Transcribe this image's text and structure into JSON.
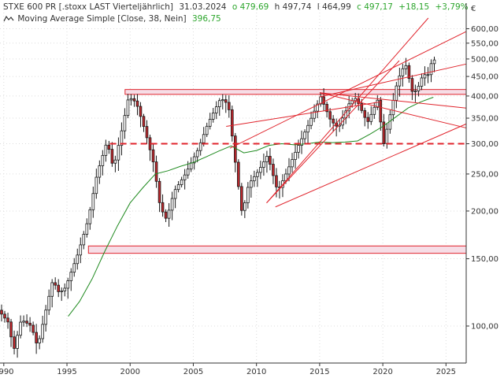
{
  "legend": {
    "instrument": "STXE 600 PR [.stoxx LAST Vierteljährlich]",
    "date": "31.03.2024",
    "open": "o 479,69",
    "high": "h 497,74",
    "low": "l 464,99",
    "close": "c 497,17",
    "change_abs": "+18,15",
    "change_pct": "+3,79%",
    "ma_label": "Moving Average Simple [Close, 38, Nein]",
    "ma_value": "396,75",
    "ma_icon": "moving-average-icon"
  },
  "currency_label": "€",
  "colors": {
    "up": "#ffffff",
    "down": "#c0282d",
    "outline": "#1a1a1a",
    "ma": "#1f8a1f",
    "lines": "#e0242c",
    "band_fill": "#f6dde6",
    "positive_text": "#2ba52b",
    "grid": "#dcdcdc"
  },
  "chart_data": {
    "type": "candlestick",
    "scale": "log",
    "ylim": [
      80,
      700
    ],
    "xlim": [
      1989.7,
      2026.6
    ],
    "y_ticks": [
      {
        "value": 100,
        "label": "100,00"
      },
      {
        "value": 150,
        "label": "150,00"
      },
      {
        "value": 200,
        "label": "200,00"
      },
      {
        "value": 250,
        "label": "250,00"
      },
      {
        "value": 300,
        "label": "300,00"
      },
      {
        "value": 350,
        "label": "350,00"
      },
      {
        "value": 400,
        "label": "400,00"
      },
      {
        "value": 450,
        "label": "450,00"
      },
      {
        "value": 500,
        "label": "500,00"
      },
      {
        "value": 550,
        "label": "550,00"
      },
      {
        "value": 600,
        "label": "600,00"
      }
    ],
    "x_ticks": [
      {
        "value": 1990,
        "label": "1990"
      },
      {
        "value": 1995,
        "label": "1995"
      },
      {
        "value": 2000,
        "label": "2000"
      },
      {
        "value": 2005,
        "label": "2005"
      },
      {
        "value": 2010,
        "label": "2010"
      },
      {
        "value": 2015,
        "label": "2015"
      },
      {
        "value": 2020,
        "label": "2020"
      },
      {
        "value": 2025,
        "label": "2025"
      }
    ],
    "anchors": [
      [
        1989.7,
        110
      ],
      [
        1990.5,
        102
      ],
      [
        1990.9,
        86
      ],
      [
        1991.5,
        104
      ],
      [
        1992.3,
        100
      ],
      [
        1992.8,
        88
      ],
      [
        1993.5,
        112
      ],
      [
        1994.0,
        132
      ],
      [
        1994.5,
        122
      ],
      [
        1995.0,
        126
      ],
      [
        1996.0,
        155
      ],
      [
        1996.8,
        190
      ],
      [
        1997.5,
        250
      ],
      [
        1998.3,
        305
      ],
      [
        1998.8,
        258
      ],
      [
        1999.5,
        330
      ],
      [
        2000.0,
        398
      ],
      [
        2000.6,
        385
      ],
      [
        2001.3,
        325
      ],
      [
        2002.0,
        265
      ],
      [
        2002.5,
        205
      ],
      [
        2003.0,
        190
      ],
      [
        2003.6,
        225
      ],
      [
        2004.5,
        250
      ],
      [
        2005.5,
        290
      ],
      [
        2006.3,
        340
      ],
      [
        2007.3,
        395
      ],
      [
        2007.9,
        380
      ],
      [
        2008.5,
        260
      ],
      [
        2009.0,
        195
      ],
      [
        2009.5,
        235
      ],
      [
        2010.3,
        255
      ],
      [
        2011.0,
        280
      ],
      [
        2011.8,
        225
      ],
      [
        2012.5,
        252
      ],
      [
        2013.3,
        290
      ],
      [
        2014.2,
        335
      ],
      [
        2015.2,
        398
      ],
      [
        2016.0,
        345
      ],
      [
        2016.6,
        330
      ],
      [
        2017.5,
        385
      ],
      [
        2018.0,
        395
      ],
      [
        2018.9,
        340
      ],
      [
        2019.7,
        390
      ],
      [
        2020.2,
        300
      ],
      [
        2020.8,
        370
      ],
      [
        2021.3,
        440
      ],
      [
        2021.9,
        488
      ],
      [
        2022.5,
        405
      ],
      [
        2022.9,
        420
      ],
      [
        2023.3,
        455
      ],
      [
        2023.8,
        455
      ],
      [
        2024.0,
        497
      ]
    ],
    "moving_average": [
      [
        1995.1,
        106
      ],
      [
        1996.0,
        116
      ],
      [
        1997.0,
        133
      ],
      [
        1998.0,
        157
      ],
      [
        1999.0,
        183
      ],
      [
        2000.0,
        210
      ],
      [
        2001.0,
        230
      ],
      [
        2002.0,
        250
      ],
      [
        2003.0,
        255
      ],
      [
        2004.0,
        262
      ],
      [
        2005.0,
        268
      ],
      [
        2006.0,
        277
      ],
      [
        2007.0,
        287
      ],
      [
        2008.0,
        296
      ],
      [
        2009.0,
        284
      ],
      [
        2010.0,
        288
      ],
      [
        2011.0,
        297
      ],
      [
        2012.0,
        300
      ],
      [
        2013.0,
        298
      ],
      [
        2014.0,
        300
      ],
      [
        2015.0,
        303
      ],
      [
        2016.0,
        302
      ],
      [
        2017.0,
        303
      ],
      [
        2018.0,
        305
      ],
      [
        2019.0,
        318
      ],
      [
        2020.0,
        333
      ],
      [
        2021.0,
        352
      ],
      [
        2022.0,
        372
      ],
      [
        2023.0,
        386
      ],
      [
        2024.0,
        397
      ]
    ],
    "hlines": [
      {
        "value": 300,
        "style": "dashed",
        "from": 1998.4
      }
    ],
    "bands": [
      {
        "from_value": 404,
        "to_value": 416,
        "start": 1999.6
      },
      {
        "from_value": 155,
        "to_value": 162,
        "start": 1996.7
      }
    ],
    "segments": [
      {
        "from": [
          2007.6,
          333
        ],
        "to": [
          2019.8,
          386
        ]
      },
      {
        "from": [
          2010.8,
          210
        ],
        "to": [
          2023.6,
          640
        ]
      },
      {
        "from": [
          2010.8,
          210
        ],
        "to": [
          2021.3,
          495
        ]
      },
      {
        "from": [
          2007.9,
          292
        ],
        "to": [
          2026.6,
          590
        ]
      },
      {
        "from": [
          2015.0,
          408
        ],
        "to": [
          2026.6,
          372
        ]
      },
      {
        "from": [
          2015.0,
          408
        ],
        "to": [
          2026.6,
          330
        ]
      },
      {
        "from": [
          2015.0,
          398
        ],
        "to": [
          2026.6,
          485
        ]
      },
      {
        "from": [
          2011.5,
          205
        ],
        "to": [
          2026.6,
          338
        ]
      }
    ]
  }
}
